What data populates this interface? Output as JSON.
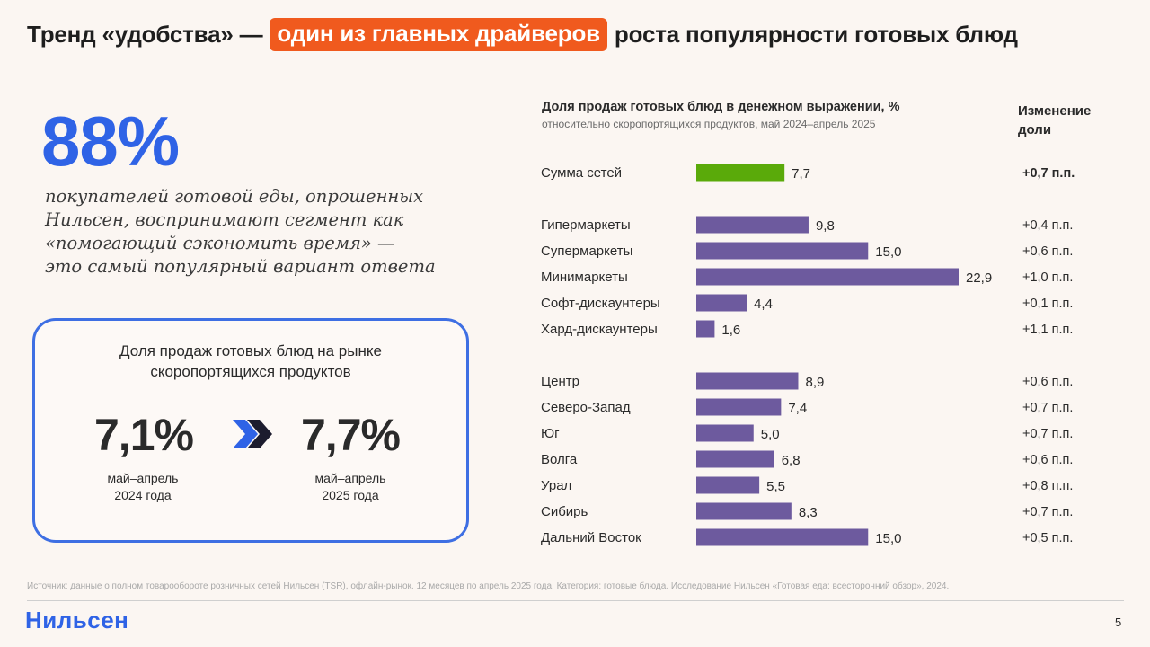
{
  "header": {
    "title_before": "Тренд «удобства» —",
    "title_highlight": "один из главных драйверов",
    "title_after": "роста популярности готовых блюд"
  },
  "stat": {
    "value": "88%",
    "lines": [
      "покупателей готовой еды, опрошенных",
      "Нильсен, воспринимают сегмент как",
      "«помогающий сэкономить время» —",
      "это самый популярный вариант ответа"
    ]
  },
  "card": {
    "title_line1": "Доля продаж готовых блюд на рынке",
    "title_line2": "скоропортящихся продуктов",
    "from_value": "7,1%",
    "from_period_line1": "май–апрель",
    "from_period_line2": "2024 года",
    "to_value": "7,7%",
    "to_period_line1": "май–апрель",
    "to_period_line2": "2025 года",
    "arrow_icon": "double-chevron-right-icon"
  },
  "chart_data": {
    "type": "bar",
    "orientation": "horizontal",
    "title": "Доля продаж готовых блюд в денежном выражении, %",
    "subtitle": "относительно скоропортящихся продуктов, май 2024–апрель 2025",
    "change_header_line1": "Изменение",
    "change_header_line2": "доли",
    "groups": [
      {
        "rows": [
          {
            "label": "Сумма сетей",
            "value": 7.7,
            "display": "7,7",
            "change": "+0,7 п.п.",
            "color": "#5aaa0a",
            "bold_change": true
          }
        ]
      },
      {
        "rows": [
          {
            "label": "Гипермаркеты",
            "value": 9.8,
            "display": "9,8",
            "change": "+0,4 п.п.",
            "color": "#6d5a9e"
          },
          {
            "label": "Супермаркеты",
            "value": 15.0,
            "display": "15,0",
            "change": "+0,6 п.п.",
            "color": "#6d5a9e"
          },
          {
            "label": "Минимаркеты",
            "value": 22.9,
            "display": "22,9",
            "change": "+1,0 п.п.",
            "color": "#6d5a9e"
          },
          {
            "label": "Софт-дискаунтеры",
            "value": 4.4,
            "display": "4,4",
            "change": "+0,1 п.п.",
            "color": "#6d5a9e"
          },
          {
            "label": "Хард-дискаунтеры",
            "value": 1.6,
            "display": "1,6",
            "change": "+1,1 п.п.",
            "color": "#6d5a9e"
          }
        ]
      },
      {
        "rows": [
          {
            "label": "Центр",
            "value": 8.9,
            "display": "8,9",
            "change": "+0,6 п.п.",
            "color": "#6d5a9e"
          },
          {
            "label": "Северо-Запад",
            "value": 7.4,
            "display": "7,4",
            "change": "+0,7 п.п.",
            "color": "#6d5a9e"
          },
          {
            "label": "Юг",
            "value": 5.0,
            "display": "5,0",
            "change": "+0,7 п.п.",
            "color": "#6d5a9e"
          },
          {
            "label": "Волга",
            "value": 6.8,
            "display": "6,8",
            "change": "+0,6 п.п.",
            "color": "#6d5a9e"
          },
          {
            "label": "Урал",
            "value": 5.5,
            "display": "5,5",
            "change": "+0,8 п.п.",
            "color": "#6d5a9e"
          },
          {
            "label": "Сибирь",
            "value": 8.3,
            "display": "8,3",
            "change": "+0,7 п.п.",
            "color": "#6d5a9e"
          },
          {
            "label": "Дальний Восток",
            "value": 15.0,
            "display": "15,0",
            "change": "+0,5 п.п.",
            "color": "#6d5a9e"
          }
        ]
      }
    ],
    "xlim": [
      0,
      22.9
    ],
    "grid": false,
    "legend": "none"
  },
  "footer": {
    "source": "Источник: данные о полном товарообороте розничных сетей Нильсен (TSR), офлайн-рынок. 12 месяцев по апрель 2025 года. Категория: готовые блюда. Исследование Нильсен «Готовая еда: всесторонний обзор», 2024.",
    "logo": "Нильсен",
    "page": "5"
  },
  "colors": {
    "accent_orange": "#f05a1e",
    "brand_blue": "#2f63e6",
    "bar_purple": "#6d5a9e",
    "bar_green": "#5aaa0a"
  }
}
